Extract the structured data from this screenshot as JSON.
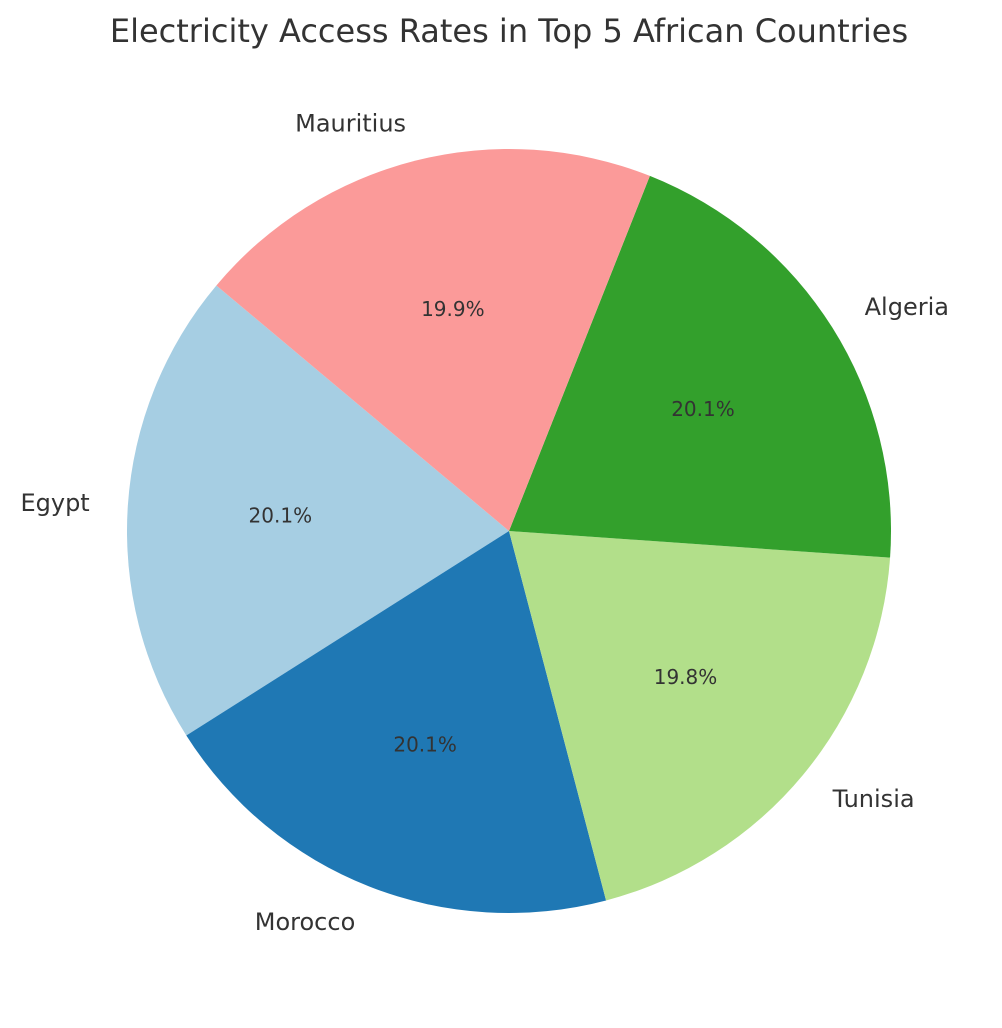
{
  "chart_data": {
    "type": "pie",
    "title": "Electricity Access Rates in Top 5 African Countries",
    "start_angle": 140,
    "direction": "counterclockwise",
    "slices": [
      {
        "label": "Egypt",
        "value": 20.1,
        "pct_label": "20.1%",
        "color": "#a6cee3"
      },
      {
        "label": "Morocco",
        "value": 20.1,
        "pct_label": "20.1%",
        "color": "#1f78b4"
      },
      {
        "label": "Tunisia",
        "value": 19.8,
        "pct_label": "19.8%",
        "color": "#b2df8a"
      },
      {
        "label": "Algeria",
        "value": 20.1,
        "pct_label": "20.1%",
        "color": "#33a02c"
      },
      {
        "label": "Mauritius",
        "value": 19.9,
        "pct_label": "19.9%",
        "color": "#fb9a99"
      }
    ]
  }
}
